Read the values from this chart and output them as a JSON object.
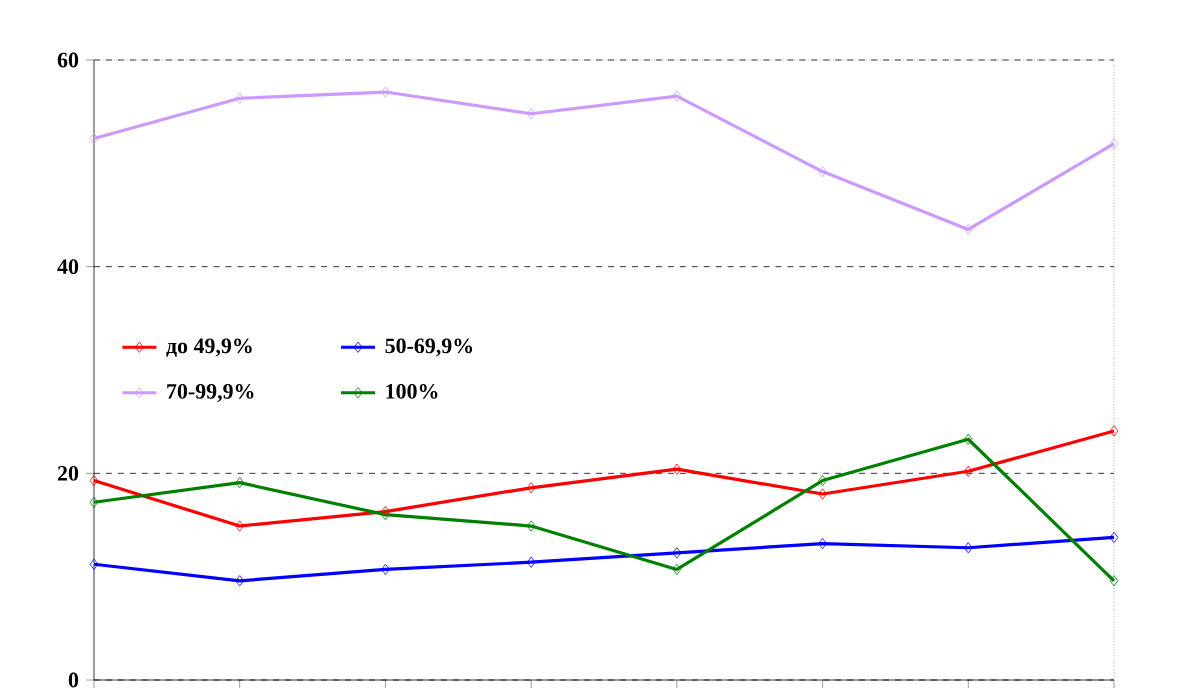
{
  "chart_data": {
    "type": "line",
    "categories": [
      null,
      null,
      null,
      null,
      null,
      null,
      null,
      null
    ],
    "series": [
      {
        "name": "до 49,9%",
        "color": "#ff0000",
        "values": [
          19.3,
          14.9,
          16.3,
          18.6,
          20.4,
          18.0,
          20.2,
          24.1
        ]
      },
      {
        "name": "50-69,9%",
        "color": "#0000ff",
        "values": [
          11.2,
          9.6,
          10.7,
          11.4,
          12.3,
          13.2,
          12.8,
          13.8
        ]
      },
      {
        "name": "70-99,9%",
        "color": "#cc99ff",
        "values": [
          52.4,
          56.3,
          56.9,
          54.8,
          56.5,
          49.2,
          43.6,
          51.9
        ]
      },
      {
        "name": "100%",
        "color": "#008000",
        "values": [
          17.2,
          19.1,
          16.0,
          14.9,
          10.7,
          19.3,
          23.3,
          9.6
        ]
      }
    ],
    "ylim": [
      0,
      60
    ],
    "yticks": [
      0,
      20,
      40,
      60
    ],
    "grid": "y",
    "legend": "left",
    "marker": "diamond",
    "line_style": "solid",
    "tick_labels": "y"
  }
}
